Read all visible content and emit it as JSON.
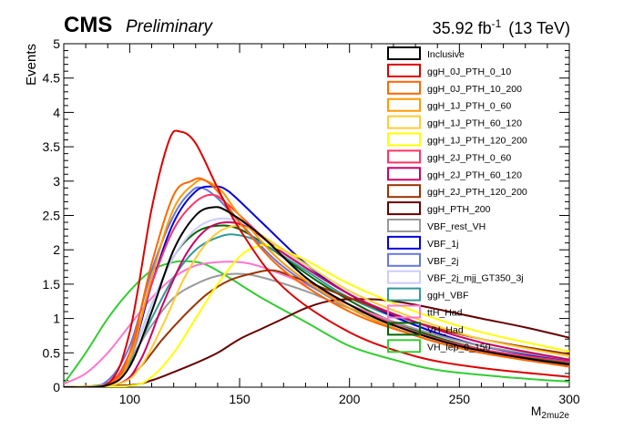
{
  "header": {
    "experiment": "CMS",
    "status": "Preliminary",
    "lumi_value": "35.92 fb",
    "lumi_exp": "-1",
    "energy": "(13 TeV)"
  },
  "chart_data": {
    "type": "line",
    "title": "",
    "xlabel_main": "M",
    "xlabel_sub": "2mu2e",
    "ylabel": "Events",
    "xlim": [
      70,
      300
    ],
    "ylim": [
      0,
      5
    ],
    "x_ticks": [
      100,
      150,
      200,
      250,
      300
    ],
    "x_tick_labels": [
      "100",
      "150",
      "200",
      "250",
      "300"
    ],
    "y_ticks": [
      0,
      0.5,
      1,
      1.5,
      2,
      2.5,
      3,
      3.5,
      4,
      4.5,
      5
    ],
    "y_tick_labels": [
      "0",
      "0.5",
      "1",
      "1.5",
      "2",
      "2.5",
      "3",
      "3.5",
      "4",
      "4.5",
      "5"
    ],
    "legend_position": "top-right",
    "series": [
      {
        "name": "Inclusive",
        "color": "#000000",
        "points": [
          [
            70,
            0
          ],
          [
            90,
            0.03
          ],
          [
            100,
            0.3
          ],
          [
            110,
            1.1
          ],
          [
            120,
            2.0
          ],
          [
            130,
            2.5
          ],
          [
            138,
            2.62
          ],
          [
            145,
            2.55
          ],
          [
            160,
            2.2
          ],
          [
            180,
            1.6
          ],
          [
            200,
            1.2
          ],
          [
            220,
            0.9
          ],
          [
            250,
            0.6
          ],
          [
            280,
            0.42
          ],
          [
            300,
            0.33
          ]
        ]
      },
      {
        "name": "ggH_0J_PTH_0_10",
        "color": "#dd0000",
        "points": [
          [
            70,
            0
          ],
          [
            90,
            0.05
          ],
          [
            100,
            0.8
          ],
          [
            110,
            2.6
          ],
          [
            118,
            3.6
          ],
          [
            123,
            3.72
          ],
          [
            130,
            3.55
          ],
          [
            140,
            2.9
          ],
          [
            150,
            2.3
          ],
          [
            170,
            1.45
          ],
          [
            200,
            0.8
          ],
          [
            230,
            0.45
          ],
          [
            260,
            0.28
          ],
          [
            300,
            0.15
          ]
        ]
      },
      {
        "name": "ggH_0J_PTH_10_200",
        "color": "#ff6600",
        "points": [
          [
            70,
            0
          ],
          [
            90,
            0.03
          ],
          [
            100,
            0.5
          ],
          [
            110,
            1.8
          ],
          [
            120,
            2.8
          ],
          [
            128,
            3.0
          ],
          [
            133,
            3.03
          ],
          [
            140,
            2.85
          ],
          [
            150,
            2.4
          ],
          [
            170,
            1.7
          ],
          [
            200,
            1.1
          ],
          [
            230,
            0.75
          ],
          [
            260,
            0.5
          ],
          [
            300,
            0.3
          ]
        ]
      },
      {
        "name": "ggH_1J_PTH_0_60",
        "color": "#ff9900",
        "points": [
          [
            70,
            0
          ],
          [
            90,
            0.03
          ],
          [
            100,
            0.4
          ],
          [
            110,
            1.6
          ],
          [
            120,
            2.6
          ],
          [
            130,
            2.98
          ],
          [
            135,
            3.0
          ],
          [
            142,
            2.85
          ],
          [
            150,
            2.5
          ],
          [
            170,
            1.8
          ],
          [
            200,
            1.15
          ],
          [
            230,
            0.75
          ],
          [
            260,
            0.5
          ],
          [
            300,
            0.32
          ]
        ]
      },
      {
        "name": "ggH_1J_PTH_60_120",
        "color": "#ffcc33",
        "points": [
          [
            70,
            0
          ],
          [
            95,
            0.05
          ],
          [
            105,
            0.3
          ],
          [
            115,
            0.9
          ],
          [
            125,
            1.6
          ],
          [
            135,
            2.1
          ],
          [
            145,
            2.33
          ],
          [
            155,
            2.3
          ],
          [
            170,
            2.0
          ],
          [
            200,
            1.4
          ],
          [
            230,
            1.0
          ],
          [
            260,
            0.7
          ],
          [
            300,
            0.45
          ]
        ]
      },
      {
        "name": "ggH_1J_PTH_120_200",
        "color": "#ffff00",
        "points": [
          [
            70,
            0
          ],
          [
            100,
            0.02
          ],
          [
            110,
            0.15
          ],
          [
            120,
            0.5
          ],
          [
            130,
            1.0
          ],
          [
            140,
            1.5
          ],
          [
            150,
            1.9
          ],
          [
            158,
            2.05
          ],
          [
            165,
            2.05
          ],
          [
            180,
            1.85
          ],
          [
            200,
            1.5
          ],
          [
            230,
            1.1
          ],
          [
            260,
            0.8
          ],
          [
            300,
            0.52
          ]
        ]
      },
      {
        "name": "ggH_2J_PTH_0_60",
        "color": "#ff3366",
        "points": [
          [
            70,
            0
          ],
          [
            90,
            0.05
          ],
          [
            100,
            0.5
          ],
          [
            110,
            1.5
          ],
          [
            120,
            2.3
          ],
          [
            130,
            2.7
          ],
          [
            138,
            2.8
          ],
          [
            145,
            2.65
          ],
          [
            160,
            2.2
          ],
          [
            180,
            1.6
          ],
          [
            200,
            1.2
          ],
          [
            230,
            0.8
          ],
          [
            260,
            0.55
          ],
          [
            300,
            0.37
          ]
        ]
      },
      {
        "name": "ggH_2J_PTH_60_120",
        "color": "#cc0066",
        "points": [
          [
            70,
            0
          ],
          [
            95,
            0.05
          ],
          [
            105,
            0.4
          ],
          [
            115,
            1.2
          ],
          [
            125,
            1.9
          ],
          [
            135,
            2.3
          ],
          [
            145,
            2.4
          ],
          [
            155,
            2.3
          ],
          [
            170,
            1.95
          ],
          [
            200,
            1.35
          ],
          [
            230,
            0.95
          ],
          [
            260,
            0.65
          ],
          [
            300,
            0.4
          ]
        ]
      },
      {
        "name": "ggH_2J_PTH_120_200",
        "color": "#993300",
        "points": [
          [
            70,
            0
          ],
          [
            95,
            0.05
          ],
          [
            105,
            0.3
          ],
          [
            115,
            0.7
          ],
          [
            125,
            1.05
          ],
          [
            135,
            1.35
          ],
          [
            145,
            1.55
          ],
          [
            155,
            1.65
          ],
          [
            165,
            1.7
          ],
          [
            175,
            1.6
          ],
          [
            200,
            1.3
          ],
          [
            230,
            0.95
          ],
          [
            260,
            0.7
          ],
          [
            300,
            0.48
          ]
        ]
      },
      {
        "name": "ggH_PTH_200",
        "color": "#660000",
        "points": [
          [
            70,
            0
          ],
          [
            100,
            0.03
          ],
          [
            110,
            0.1
          ],
          [
            120,
            0.22
          ],
          [
            130,
            0.35
          ],
          [
            140,
            0.5
          ],
          [
            150,
            0.7
          ],
          [
            160,
            0.85
          ],
          [
            170,
            1.0
          ],
          [
            180,
            1.15
          ],
          [
            190,
            1.25
          ],
          [
            200,
            1.28
          ],
          [
            215,
            1.27
          ],
          [
            230,
            1.2
          ],
          [
            260,
            1.0
          ],
          [
            280,
            0.87
          ],
          [
            300,
            0.72
          ]
        ]
      },
      {
        "name": "VBF_rest_VH",
        "color": "#999999",
        "points": [
          [
            70,
            0
          ],
          [
            90,
            0.05
          ],
          [
            100,
            0.4
          ],
          [
            110,
            0.9
          ],
          [
            120,
            1.3
          ],
          [
            130,
            1.5
          ],
          [
            140,
            1.62
          ],
          [
            150,
            1.65
          ],
          [
            160,
            1.6
          ],
          [
            180,
            1.4
          ],
          [
            200,
            1.15
          ],
          [
            230,
            0.85
          ],
          [
            260,
            0.6
          ],
          [
            300,
            0.4
          ]
        ]
      },
      {
        "name": "VBF_1j",
        "color": "#0000dd",
        "points": [
          [
            70,
            0
          ],
          [
            90,
            0.04
          ],
          [
            100,
            0.4
          ],
          [
            110,
            1.5
          ],
          [
            120,
            2.4
          ],
          [
            130,
            2.85
          ],
          [
            138,
            2.92
          ],
          [
            145,
            2.85
          ],
          [
            160,
            2.4
          ],
          [
            180,
            1.8
          ],
          [
            200,
            1.35
          ],
          [
            230,
            0.9
          ],
          [
            260,
            0.6
          ],
          [
            300,
            0.38
          ]
        ]
      },
      {
        "name": "VBF_2j",
        "color": "#6677dd",
        "points": [
          [
            70,
            0
          ],
          [
            88,
            0.05
          ],
          [
            100,
            0.6
          ],
          [
            110,
            1.7
          ],
          [
            120,
            2.5
          ],
          [
            128,
            2.85
          ],
          [
            133,
            2.9
          ],
          [
            140,
            2.75
          ],
          [
            150,
            2.4
          ],
          [
            170,
            1.75
          ],
          [
            200,
            1.15
          ],
          [
            230,
            0.75
          ],
          [
            260,
            0.5
          ],
          [
            300,
            0.33
          ]
        ]
      },
      {
        "name": "VBF_2j_mjj_GT350_3j",
        "color": "#ccccff",
        "points": [
          [
            70,
            0
          ],
          [
            90,
            0.05
          ],
          [
            100,
            0.4
          ],
          [
            110,
            1.2
          ],
          [
            120,
            1.9
          ],
          [
            130,
            2.3
          ],
          [
            140,
            2.45
          ],
          [
            150,
            2.4
          ],
          [
            165,
            2.1
          ],
          [
            190,
            1.55
          ],
          [
            220,
            1.05
          ],
          [
            260,
            0.6
          ],
          [
            300,
            0.37
          ]
        ]
      },
      {
        "name": "ggH_VBF",
        "color": "#339999",
        "points": [
          [
            70,
            0
          ],
          [
            90,
            0.05
          ],
          [
            100,
            0.35
          ],
          [
            110,
            1.0
          ],
          [
            120,
            1.6
          ],
          [
            130,
            2.0
          ],
          [
            140,
            2.18
          ],
          [
            148,
            2.22
          ],
          [
            160,
            2.1
          ],
          [
            180,
            1.7
          ],
          [
            200,
            1.3
          ],
          [
            230,
            0.9
          ],
          [
            260,
            0.6
          ],
          [
            300,
            0.38
          ]
        ]
      },
      {
        "name": "ttH_Had",
        "color": "#ff77cc",
        "points": [
          [
            70,
            0.05
          ],
          [
            80,
            0.2
          ],
          [
            90,
            0.5
          ],
          [
            100,
            0.9
          ],
          [
            110,
            1.3
          ],
          [
            120,
            1.6
          ],
          [
            130,
            1.77
          ],
          [
            140,
            1.82
          ],
          [
            150,
            1.82
          ],
          [
            160,
            1.75
          ],
          [
            180,
            1.5
          ],
          [
            200,
            1.2
          ],
          [
            230,
            0.85
          ],
          [
            260,
            0.6
          ],
          [
            300,
            0.38
          ]
        ]
      },
      {
        "name": "VH_Had",
        "color": "#006600",
        "points": [
          [
            70,
            0
          ],
          [
            90,
            0.06
          ],
          [
            100,
            0.4
          ],
          [
            110,
            1.2
          ],
          [
            120,
            1.9
          ],
          [
            130,
            2.25
          ],
          [
            140,
            2.35
          ],
          [
            150,
            2.3
          ],
          [
            165,
            2.0
          ],
          [
            190,
            1.45
          ],
          [
            220,
            0.95
          ],
          [
            260,
            0.55
          ],
          [
            300,
            0.35
          ]
        ]
      },
      {
        "name": "VH_lep_0_150",
        "color": "#33cc33",
        "points": [
          [
            70,
            0.05
          ],
          [
            80,
            0.5
          ],
          [
            90,
            1.0
          ],
          [
            100,
            1.4
          ],
          [
            110,
            1.7
          ],
          [
            120,
            1.82
          ],
          [
            128,
            1.83
          ],
          [
            135,
            1.78
          ],
          [
            145,
            1.6
          ],
          [
            160,
            1.3
          ],
          [
            180,
            0.95
          ],
          [
            200,
            0.6
          ],
          [
            220,
            0.4
          ],
          [
            240,
            0.25
          ],
          [
            270,
            0.15
          ],
          [
            300,
            0.08
          ]
        ]
      }
    ]
  }
}
